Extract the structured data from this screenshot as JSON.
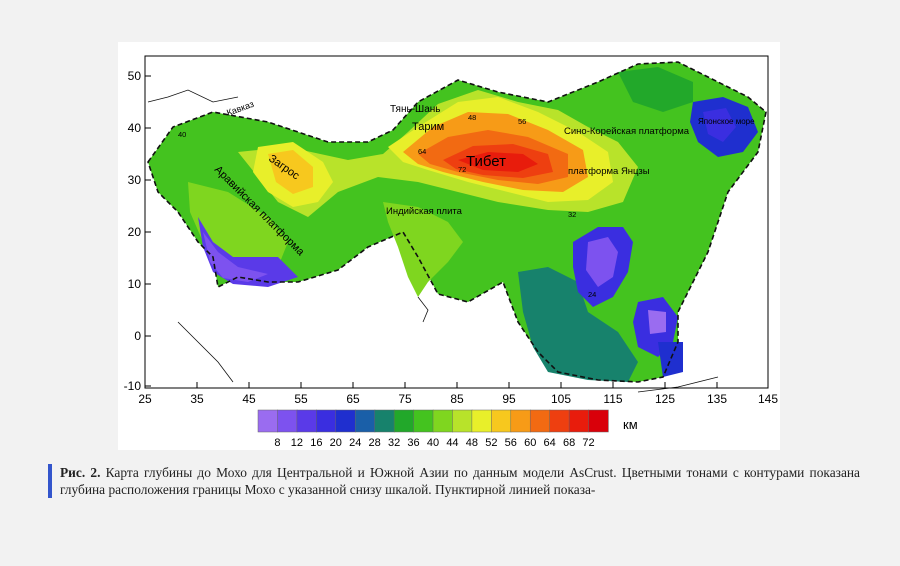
{
  "map": {
    "x_ticks": [
      "25",
      "35",
      "45",
      "55",
      "65",
      "75",
      "85",
      "95",
      "105",
      "115",
      "125",
      "135",
      "145"
    ],
    "y_ticks": [
      "50",
      "40",
      "30",
      "20",
      "10",
      "0",
      "-10"
    ],
    "labels": {
      "tien_shan": "Тянь-Шань",
      "tarim": "Тарим",
      "tibet": "Тибет",
      "kavkaz": "Кавказ",
      "zagros": "Загрос",
      "arabian": "Аравийская платформа",
      "indian": "Индийская плита",
      "sino_korean": "Сино-Корейская платформа",
      "yangtze": "платформа Янцзы",
      "japan_sea": "Японское море"
    },
    "contour_labels": [
      "40",
      "48",
      "56",
      "64",
      "72",
      "32",
      "24"
    ]
  },
  "colorbar": {
    "values": [
      "8",
      "12",
      "16",
      "20",
      "24",
      "28",
      "32",
      "36",
      "40",
      "44",
      "48",
      "52",
      "56",
      "60",
      "64",
      "68",
      "72"
    ],
    "unit": "км",
    "colors": [
      "#9a6cf0",
      "#7d52ef",
      "#5a3ae8",
      "#3a2ee0",
      "#1f2fcf",
      "#1a5fa8",
      "#17826c",
      "#22a82a",
      "#44c31f",
      "#7fd61f",
      "#b8e32a",
      "#e8ef2a",
      "#f7c81e",
      "#f79b17",
      "#f26a12",
      "#ee3f10",
      "#e81c0c",
      "#d9000a"
    ]
  },
  "caption": {
    "label": "Рис. 2.",
    "text": "Карта глубины до Мохо для Центральной и Южной Азии по данным модели AsCrust. Цветными тонами с контурами показана глубина расположения границы Мохо с указанной снизу шкалой. Пунктирной линией показа-"
  }
}
